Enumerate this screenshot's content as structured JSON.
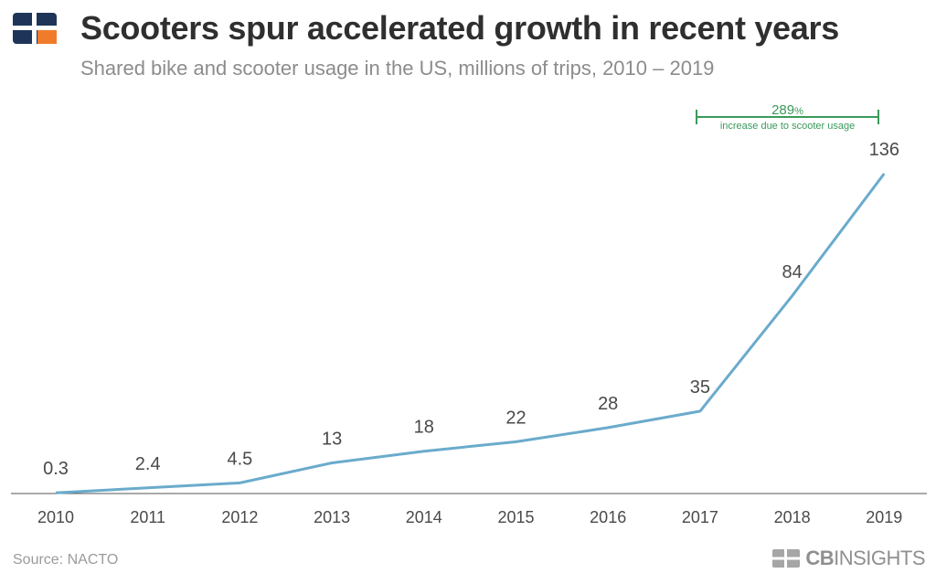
{
  "header": {
    "title": "Scooters spur accelerated growth in recent years",
    "subtitle": "Shared bike and scooter usage in the US, millions of trips, 2010 – 2019"
  },
  "annotation": {
    "value": "289",
    "unit": "%",
    "text": "increase due to scooter usage",
    "color": "#3a9a5b"
  },
  "footer": {
    "source": "Source: NACTO",
    "brand_bold": "CB",
    "brand_rest": "INSIGHTS"
  },
  "colors": {
    "line": "#6aabcc",
    "axis": "#555555",
    "label": "#4a4a4a",
    "logo_navy": "#1e3559",
    "logo_orange": "#f07c2b"
  },
  "chart_data": {
    "type": "line",
    "title": "Scooters spur accelerated growth in recent years",
    "subtitle": "Shared bike and scooter usage in the US, millions of trips, 2010 – 2019",
    "categories": [
      "2010",
      "2011",
      "2012",
      "2013",
      "2014",
      "2015",
      "2016",
      "2017",
      "2018",
      "2019"
    ],
    "values": [
      0.3,
      2.4,
      4.5,
      13,
      18,
      22,
      28,
      35,
      84,
      136
    ],
    "value_labels": [
      "0.3",
      "2.4",
      "4.5",
      "13",
      "18",
      "22",
      "28",
      "35",
      "84",
      "136"
    ],
    "xlabel": "",
    "ylabel": "",
    "ylim": [
      0,
      136
    ],
    "grid": false,
    "legend": "none"
  }
}
